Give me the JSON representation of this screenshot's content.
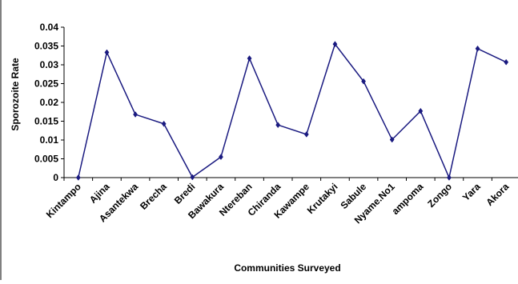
{
  "chart_data": {
    "type": "line",
    "title": "",
    "xlabel": "Communities Surveyed",
    "ylabel": "Sporozoite Rate",
    "categories": [
      "Kintampo",
      "Ajina",
      "Asantekwa",
      "Brecha",
      "Bredi",
      "Bawakura",
      "Ntereban",
      "Chiranda",
      "Kawampe",
      "Krutakyi",
      "Sabule",
      "Nyame.No1",
      "ampoma",
      "Zongo",
      "Yara",
      "Akora"
    ],
    "series": [
      {
        "values": [
          0,
          0.0333,
          0.0168,
          0.0143,
          0.0001,
          0.0055,
          0.0317,
          0.014,
          0.0115,
          0.0355,
          0.0256,
          0.0101,
          0.0177,
          0,
          0.0343,
          0.0307
        ]
      }
    ],
    "ylim": [
      0,
      0.04
    ],
    "yticks": [
      "0",
      "0.005",
      "0.01",
      "0.015",
      "0.02",
      "0.025",
      "0.03",
      "0.035",
      "0.04"
    ],
    "grid": false,
    "colors": {
      "line": "#1a1a80",
      "marker": "#1a1a80",
      "axis": "#000000"
    }
  }
}
